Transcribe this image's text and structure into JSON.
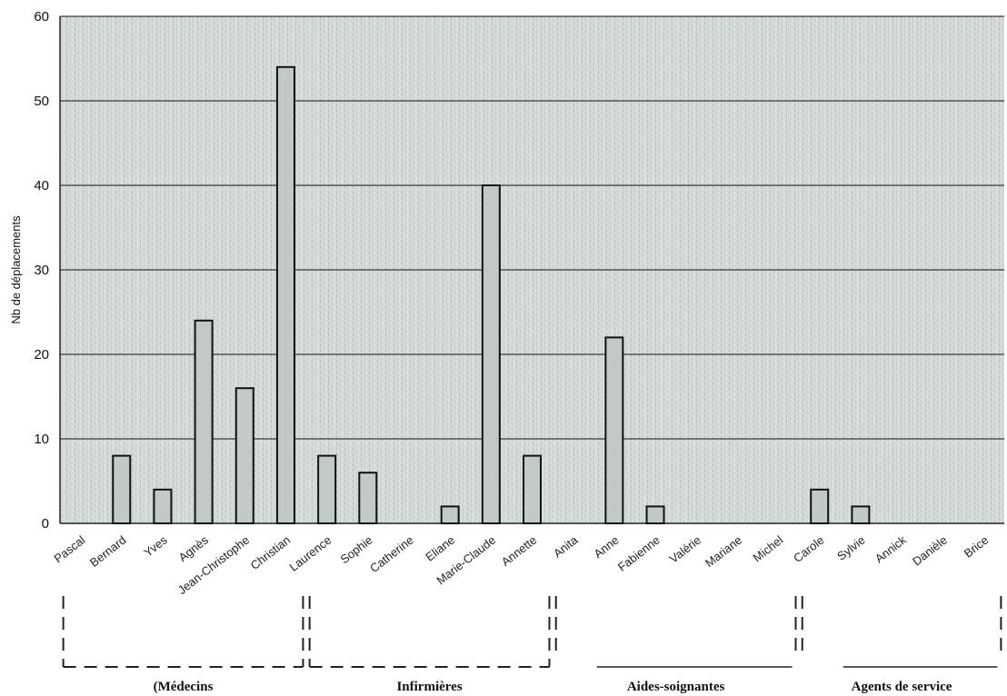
{
  "chart_data": {
    "type": "bar",
    "title": "",
    "xlabel": "",
    "ylabel": "Nb de déplacements",
    "ylim": [
      0,
      60
    ],
    "yticks": [
      "0",
      "10",
      "20",
      "30",
      "40",
      "50",
      "60"
    ],
    "grid": true,
    "categories": [
      "Pascal",
      "Bernard",
      "Yves",
      "Agnès",
      "Jean-Christophe",
      "Christian",
      "Laurence",
      "Sophie",
      "Catherine",
      "Eliane",
      "Marie-Claude",
      "Annette",
      "Anita",
      "Anne",
      "Fabienne",
      "Valérie",
      "Mariane",
      "Michel",
      "Carole",
      "Sylvie",
      "Annick",
      "Danièle",
      "Brice"
    ],
    "values": [
      0,
      8,
      4,
      24,
      16,
      54,
      8,
      6,
      0,
      2,
      40,
      8,
      0,
      22,
      2,
      0,
      0,
      0,
      4,
      2,
      0,
      0,
      0
    ],
    "groups": [
      {
        "label": "(Médecins",
        "style": "dashed",
        "from": 0,
        "to": 5
      },
      {
        "label": "Infirmières",
        "style": "dashed",
        "from": 6,
        "to": 11
      },
      {
        "label": "Aides-soignantes",
        "style": "solid",
        "from": 12,
        "to": 17
      },
      {
        "label": "Agents de service",
        "style": "solid",
        "from": 18,
        "to": 22
      }
    ],
    "colors": {
      "bar_fill": "#c2c9c9",
      "plot_bg": "#d4dad9",
      "grid": "#3a3a3a",
      "bar_stroke": "#111111"
    }
  }
}
